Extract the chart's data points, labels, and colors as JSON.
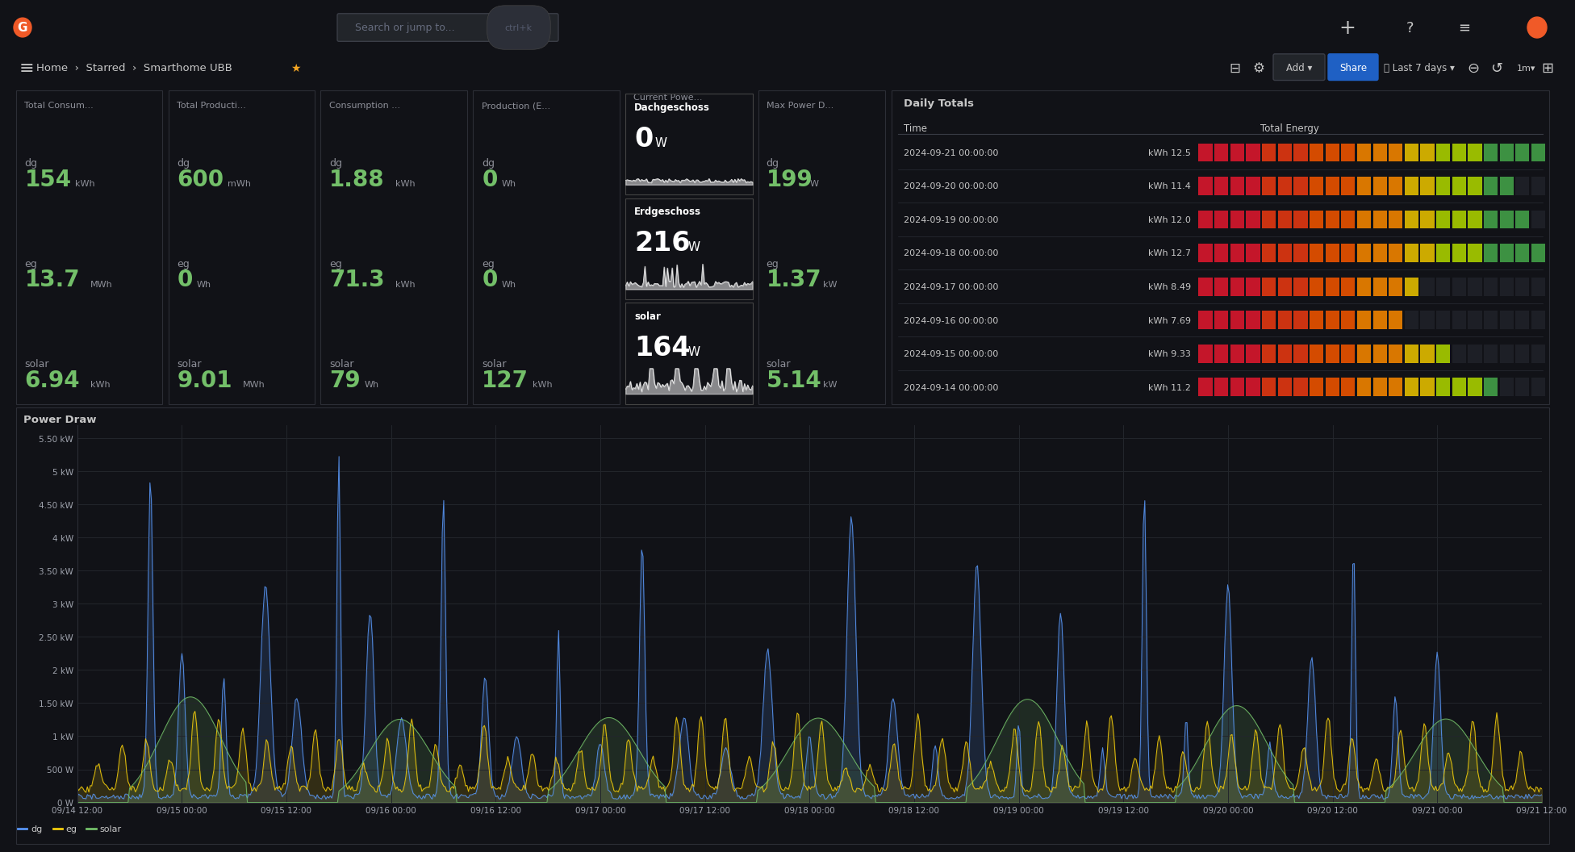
{
  "bg_color": "#111217",
  "panel_bg": "#1a1d21",
  "panel_border": "#2c2e36",
  "text_gray": "#8e9099",
  "text_light": "#c7c7c7",
  "value_green": "#73bf69",
  "nav_bg": "#0b0c0f",
  "breadcrumb_bg": "#161719",
  "panels_top": [
    {
      "title": "Total Consum...",
      "rows": [
        {
          "label": "dg",
          "value": "154",
          "unit": "kWh"
        },
        {
          "label": "eg",
          "value": "13.7",
          "unit": "MWh"
        },
        {
          "label": "solar",
          "value": "6.94",
          "unit": "kWh"
        }
      ]
    },
    {
      "title": "Total Producti...",
      "rows": [
        {
          "label": "dg",
          "value": "600",
          "unit": "mWh"
        },
        {
          "label": "eg",
          "value": "0",
          "unit": "Wh"
        },
        {
          "label": "solar",
          "value": "9.01",
          "unit": "MWh"
        }
      ]
    },
    {
      "title": "Consumption ...",
      "rows": [
        {
          "label": "dg",
          "value": "1.88",
          "unit": "kWh"
        },
        {
          "label": "eg",
          "value": "71.3",
          "unit": "kWh"
        },
        {
          "label": "solar",
          "value": "79",
          "unit": "Wh"
        }
      ]
    },
    {
      "title": "Production (E...",
      "rows": [
        {
          "label": "dg",
          "value": "0",
          "unit": "Wh"
        },
        {
          "label": "eg",
          "value": "0",
          "unit": "Wh"
        },
        {
          "label": "solar",
          "value": "127",
          "unit": "kWh"
        }
      ]
    }
  ],
  "current_power_title": "Current Powe...",
  "current_power_rows": [
    {
      "label": "Dachgeschoss",
      "value": "0",
      "unit": "W",
      "bg": "#3d9142",
      "sparkline": "flat"
    },
    {
      "label": "Erdgeschoss",
      "value": "216",
      "unit": "W",
      "bg": "#3d9142",
      "sparkline": "spiky"
    },
    {
      "label": "solar",
      "value": "164",
      "unit": "W",
      "bg": "#2b7a2b",
      "sparkline": "bars"
    }
  ],
  "max_power_title": "Max Power D...",
  "max_power_rows": [
    {
      "label": "dg",
      "value": "199",
      "unit": "W"
    },
    {
      "label": "eg",
      "value": "1.37",
      "unit": "kW"
    },
    {
      "label": "solar",
      "value": "5.14",
      "unit": "kW"
    }
  ],
  "daily_totals_title": "Daily Totals",
  "daily_totals_rows": [
    {
      "date": "2024-09-21 00:00:00",
      "kwh": "12.5",
      "ratio": 1.0
    },
    {
      "date": "2024-09-20 00:00:00",
      "kwh": "11.4",
      "ratio": 0.91
    },
    {
      "date": "2024-09-19 00:00:00",
      "kwh": "12.0",
      "ratio": 0.96
    },
    {
      "date": "2024-09-18 00:00:00",
      "kwh": "12.7",
      "ratio": 1.0
    },
    {
      "date": "2024-09-17 00:00:00",
      "kwh": "8.49",
      "ratio": 0.68
    },
    {
      "date": "2024-09-16 00:00:00",
      "kwh": "7.69",
      "ratio": 0.62
    },
    {
      "date": "2024-09-15 00:00:00",
      "kwh": "9.33",
      "ratio": 0.75
    },
    {
      "date": "2024-09-14 00:00:00",
      "kwh": "11.2",
      "ratio": 0.9
    }
  ],
  "power_draw_title": "Power Draw",
  "power_draw_yticks": [
    "0 W",
    "500 W",
    "1 kW",
    "1.50 kW",
    "2 kW",
    "2.50 kW",
    "3 kW",
    "3.50 kW",
    "4 kW",
    "4.50 kW",
    "5 kW",
    "5.50 kW"
  ],
  "power_draw_ytick_vals": [
    0,
    500,
    1000,
    1500,
    2000,
    2500,
    3000,
    3500,
    4000,
    4500,
    5000,
    5500
  ],
  "power_draw_xtick_labels": [
    "09/14 12:00",
    "09/15 00:00",
    "09/15 12:00",
    "09/16 00:00",
    "09/16 12:00",
    "09/17 00:00",
    "09/17 12:00",
    "09/18 00:00",
    "09/18 12:00",
    "09/19 00:00",
    "09/19 12:00",
    "09/20 00:00",
    "09/20 12:00",
    "09/21 00:00",
    "09/21 12:00"
  ],
  "color_dg": "#5794f2",
  "color_eg": "#f2cc0c",
  "color_solar": "#73bf69"
}
